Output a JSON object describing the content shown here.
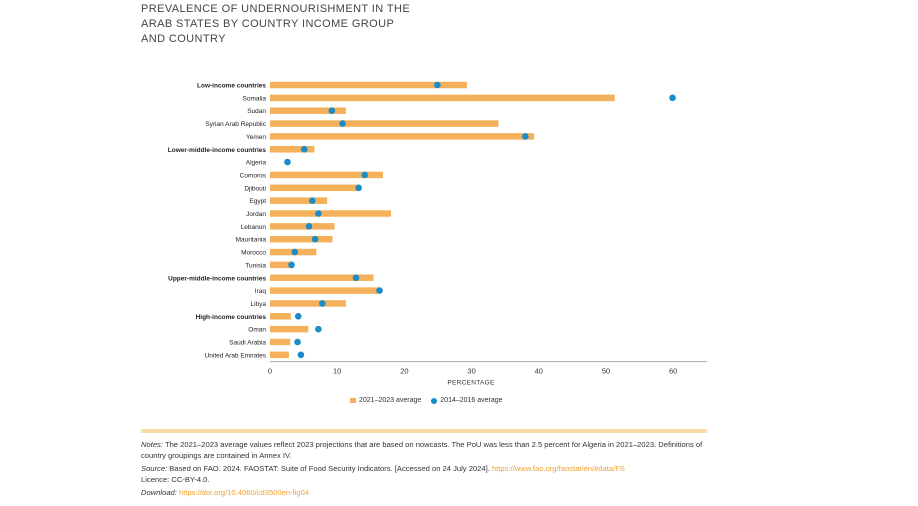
{
  "title_lines": [
    "PREVALENCE OF UNDERNOURISHMENT IN THE",
    "ARAB STATES BY COUNTRY INCOME GROUP",
    "AND COUNTRY"
  ],
  "colors": {
    "bar": "#f4b05a",
    "dot": "#1a8cc8",
    "separator": "#f9d9a8",
    "link": "#f0a030"
  },
  "chart_data": {
    "type": "bar",
    "orientation": "horizontal",
    "title": "PREVALENCE OF UNDERNOURISHMENT IN THE ARAB STATES BY COUNTRY INCOME GROUP AND COUNTRY",
    "xlabel": "PERCENTAGE",
    "ylabel": "",
    "xlim": [
      0,
      65
    ],
    "xticks": [
      "0",
      "10",
      "20",
      "30",
      "40",
      "50",
      "60"
    ],
    "categories": [
      {
        "label": "Low-income countries",
        "bold": true
      },
      {
        "label": "Somalia",
        "bold": false
      },
      {
        "label": "Sudan",
        "bold": false
      },
      {
        "label": "Syrian Arab Republic",
        "bold": false
      },
      {
        "label": "Yemen",
        "bold": false
      },
      {
        "label": "Lower-middle-income countries",
        "bold": true
      },
      {
        "label": "Algeria",
        "bold": false
      },
      {
        "label": "Comoros",
        "bold": false
      },
      {
        "label": "Djibouti",
        "bold": false
      },
      {
        "label": "Egypt",
        "bold": false
      },
      {
        "label": "Jordan",
        "bold": false
      },
      {
        "label": "Lebanon",
        "bold": false
      },
      {
        "label": "Mauritania",
        "bold": false
      },
      {
        "label": "Morocco",
        "bold": false
      },
      {
        "label": "Tunisia",
        "bold": false
      },
      {
        "label": "Upper-middle-income countries",
        "bold": true
      },
      {
        "label": "Iraq",
        "bold": false
      },
      {
        "label": "Libya",
        "bold": false
      },
      {
        "label": "High-income countries",
        "bold": true
      },
      {
        "label": "Oman",
        "bold": false
      },
      {
        "label": "Saudi Arabia",
        "bold": false
      },
      {
        "label": "United Arab Emirates",
        "bold": false
      }
    ],
    "series": [
      {
        "name": "2021–2023 average",
        "type": "bar",
        "values": [
          29.3,
          51.3,
          11.3,
          34.0,
          39.3,
          6.6,
          null,
          16.8,
          13.3,
          8.5,
          18.0,
          9.6,
          9.3,
          6.9,
          3.5,
          15.4,
          16.3,
          11.3,
          3.1,
          5.7,
          3.0,
          2.8
        ]
      },
      {
        "name": "2014–2016 average",
        "type": "point",
        "values": [
          24.9,
          59.9,
          9.2,
          10.8,
          38.0,
          5.1,
          2.6,
          14.1,
          13.2,
          6.3,
          7.2,
          5.8,
          6.7,
          3.7,
          3.2,
          12.8,
          16.3,
          7.8,
          4.2,
          7.2,
          4.1,
          4.6
        ]
      }
    ],
    "legend_position": "bottom-center"
  },
  "notes": {
    "notes_label": "Notes:",
    "notes_text": "The 2021–2023 average values reflect 2023 projections that are based on nowcasts. The PoU was less than 2.5 percent for Algeria in 2021–2023. Definitions of country groupings are contained in Annex IV.",
    "source_label": "Source:",
    "source_text": "Based on FAO. 2024. FAOSTAT: Suite of Food Security Indicators. [Accessed on 24 July 2024].",
    "source_link": "https://www.fao.org/faostat/en/#data/FS",
    "licence": "Licence: CC-BY-4.0.",
    "download_label": "Download:",
    "download_link": "https://doi.org/10.4060/cd3500en-fig04"
  }
}
